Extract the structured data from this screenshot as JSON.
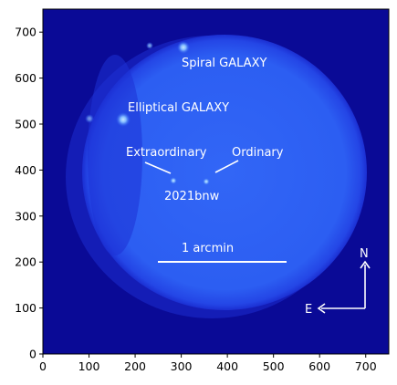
{
  "image": {
    "background_color": "#0a0a96",
    "disk_color": "#2a5cf2",
    "disk_edge_color": "#1c34dc",
    "axis_x_range": [
      0,
      750
    ],
    "axis_y_range": [
      0,
      750
    ]
  },
  "axes": {
    "x_ticks": [
      "0",
      "100",
      "200",
      "300",
      "400",
      "500",
      "600",
      "700"
    ],
    "y_ticks": [
      "0",
      "100",
      "200",
      "300",
      "400",
      "500",
      "600",
      "700"
    ]
  },
  "annotations": {
    "spiral_galaxy": "Spiral GALAXY",
    "elliptical_galaxy": "Elliptical GALAXY",
    "extraordinary": "Extraordinary",
    "ordinary": "Ordinary",
    "object_name": "2021bnw",
    "scale_bar_label": "1 arcmin",
    "north": "N",
    "east": "E"
  }
}
